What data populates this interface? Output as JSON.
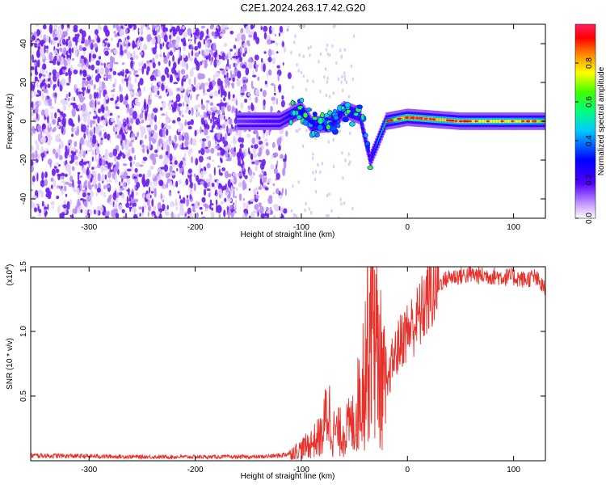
{
  "chart_data": [
    {
      "type": "heatmap",
      "title": "C2E1.2024.263.17.42.G20",
      "xlabel": "Height of straight line (km)",
      "ylabel": "Frequency (Hz)",
      "xlim": [
        -355,
        130
      ],
      "ylim": [
        -50,
        50
      ],
      "xticks": [
        -300,
        -200,
        -100,
        0,
        100
      ],
      "yticks": [
        -40,
        -20,
        0,
        20,
        40
      ],
      "colorbar": {
        "label": "Normalized spectral amplitude",
        "range": [
          0,
          1
        ],
        "ticks": [
          0.0,
          0.2,
          0.4,
          0.6,
          0.8
        ],
        "tick_labels": [
          "0.0",
          "0.2",
          "0.4",
          "0.6",
          "0.8"
        ],
        "colormap": [
          "#ffffff",
          "#7a00ff",
          "#0000ff",
          "#00e5ff",
          "#00ff00",
          "#ffff00",
          "#ff8000",
          "#ff0000",
          "#ff2060"
        ]
      },
      "features": {
        "noise_region_x": [
          -355,
          -110
        ],
        "signal_band": [
          {
            "x": -160,
            "f": 0,
            "amp": 0.15
          },
          {
            "x": -120,
            "f": 0,
            "amp": 0.2
          },
          {
            "x": -100,
            "f": 6,
            "amp": 0.35
          },
          {
            "x": -90,
            "f": -2,
            "amp": 0.3
          },
          {
            "x": -70,
            "f": -1,
            "amp": 0.3
          },
          {
            "x": -60,
            "f": 6,
            "amp": 0.3
          },
          {
            "x": -45,
            "f": 3,
            "amp": 0.35
          },
          {
            "x": -35,
            "f": -20,
            "amp": 0.25
          },
          {
            "x": -20,
            "f": 0,
            "amp": 0.6
          },
          {
            "x": 0,
            "f": 2,
            "amp": 0.85
          },
          {
            "x": 50,
            "f": 0,
            "amp": 0.75
          },
          {
            "x": 100,
            "f": 0,
            "amp": 0.75
          },
          {
            "x": 130,
            "f": 0,
            "amp": 0.7
          }
        ]
      }
    },
    {
      "type": "line",
      "xlabel": "Height of straight line (km)",
      "ylabel": "SNR (10 * v/v)",
      "y_multiplier": "(x10",
      "y_multiplier_exp": "4",
      "y_multiplier_close": ")",
      "xlim": [
        -355,
        130
      ],
      "ylim": [
        0,
        15000
      ],
      "xticks": [
        -300,
        -200,
        -100,
        0,
        100
      ],
      "yticks": [
        5000,
        10000,
        15000
      ],
      "ytick_labels": [
        "0.5",
        "1.0",
        "1.5"
      ],
      "color": "#e8302a",
      "x": [
        -355,
        -300,
        -250,
        -200,
        -160,
        -140,
        -120,
        -110,
        -100,
        -90,
        -80,
        -75,
        -70,
        -60,
        -50,
        -45,
        -40,
        -35,
        -32,
        -30,
        -25,
        -20,
        -15,
        -10,
        -5,
        0,
        5,
        10,
        15,
        20,
        30,
        40,
        50,
        60,
        70,
        80,
        90,
        100,
        110,
        120,
        130
      ],
      "y": [
        400,
        350,
        300,
        300,
        300,
        300,
        400,
        600,
        900,
        1400,
        2000,
        4200,
        2200,
        2200,
        3000,
        5000,
        7500,
        11500,
        13500,
        9000,
        7000,
        5000,
        7500,
        8500,
        9500,
        10000,
        10500,
        11000,
        11800,
        12800,
        13700,
        14200,
        14300,
        14400,
        14300,
        14300,
        14200,
        14200,
        14000,
        14200,
        13200
      ]
    }
  ]
}
